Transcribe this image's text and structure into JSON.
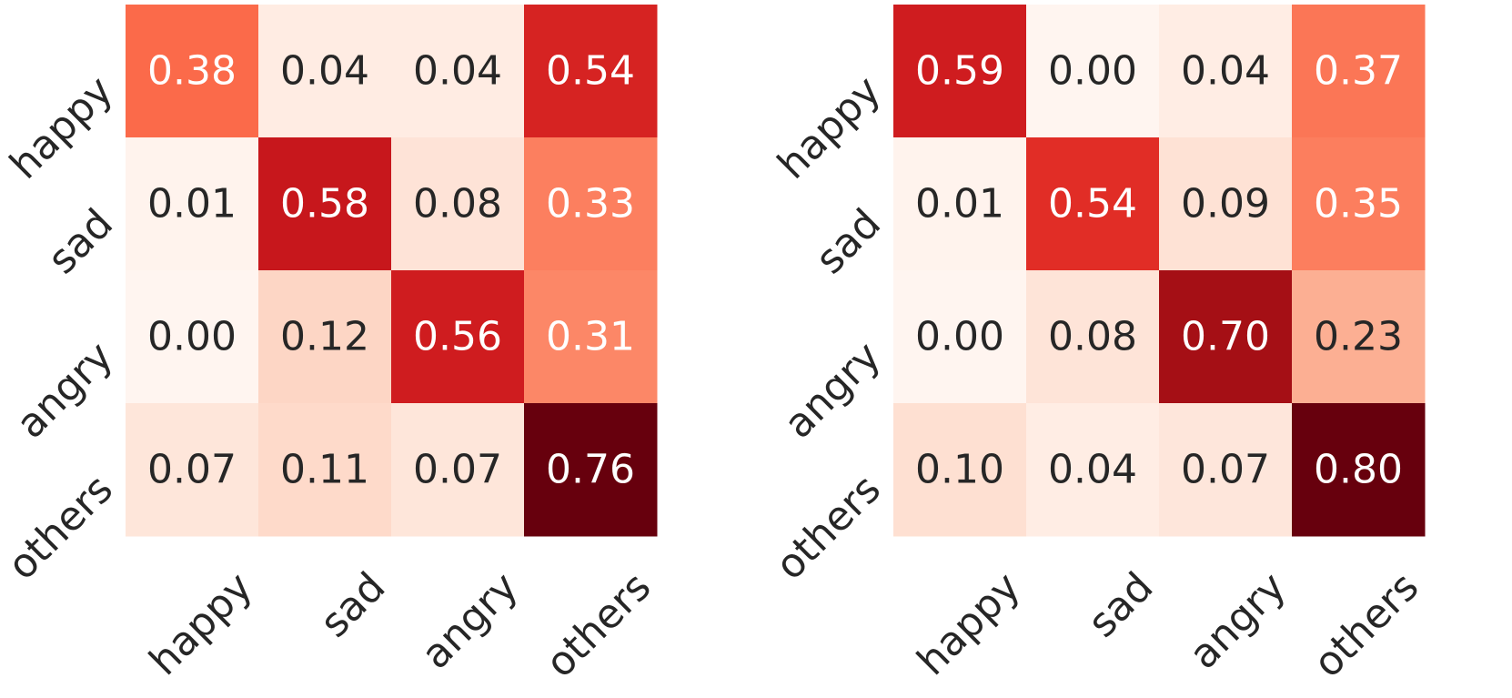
{
  "chart_data": [
    {
      "type": "heatmap",
      "title": "",
      "xlabel": "",
      "ylabel": "",
      "x_categories": [
        "happy",
        "sad",
        "angry",
        "others"
      ],
      "y_categories": [
        "happy",
        "sad",
        "angry",
        "others"
      ],
      "values": [
        [
          0.38,
          0.04,
          0.04,
          0.54
        ],
        [
          0.01,
          0.58,
          0.08,
          0.33
        ],
        [
          0.0,
          0.12,
          0.56,
          0.31
        ],
        [
          0.07,
          0.11,
          0.07,
          0.76
        ]
      ],
      "labels": [
        [
          "0.38",
          "0.04",
          "0.04",
          "0.54"
        ],
        [
          "0.01",
          "0.58",
          "0.08",
          "0.33"
        ],
        [
          "0.00",
          "0.12",
          "0.56",
          "0.31"
        ],
        [
          "0.07",
          "0.11",
          "0.07",
          "0.76"
        ]
      ],
      "colormap": "Reds",
      "colorbar": false
    },
    {
      "type": "heatmap",
      "title": "",
      "xlabel": "",
      "ylabel": "",
      "x_categories": [
        "happy",
        "sad",
        "angry",
        "others"
      ],
      "y_categories": [
        "happy",
        "sad",
        "angry",
        "others"
      ],
      "values": [
        [
          0.59,
          0.0,
          0.04,
          0.37
        ],
        [
          0.01,
          0.54,
          0.09,
          0.35
        ],
        [
          0.0,
          0.08,
          0.7,
          0.23
        ],
        [
          0.1,
          0.04,
          0.07,
          0.8
        ]
      ],
      "labels": [
        [
          "0.59",
          "0.00",
          "0.04",
          "0.37"
        ],
        [
          "0.01",
          "0.54",
          "0.09",
          "0.35"
        ],
        [
          "0.00",
          "0.08",
          "0.70",
          "0.23"
        ],
        [
          "0.10",
          "0.04",
          "0.07",
          "0.80"
        ]
      ],
      "colormap": "Reds",
      "colorbar": false
    }
  ],
  "colors": {
    "dark_text": "#262626",
    "light_text": "#ffffff",
    "scale_stops": [
      "#fff5f0",
      "#fee0d2",
      "#fcbba1",
      "#fc9272",
      "#fb6a4a",
      "#ef3b2c",
      "#cb181d",
      "#a50f15",
      "#67000d"
    ]
  }
}
